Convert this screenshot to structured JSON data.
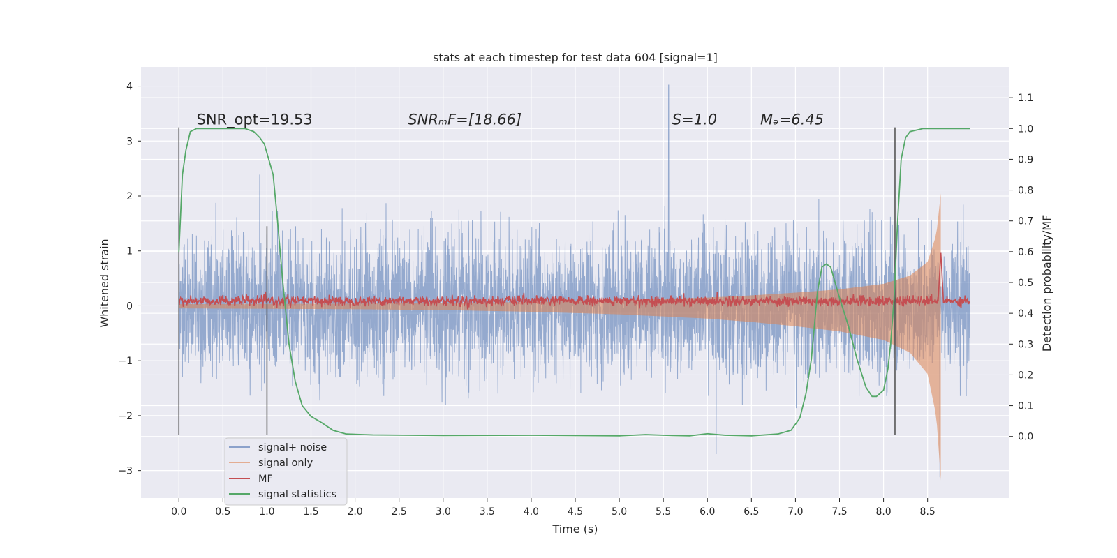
{
  "chart_data": {
    "type": "line",
    "title": "stats at each timestep for test data 604 [signal=1]",
    "xlabel": "Time (s)",
    "ylabel": "Whitened strain",
    "ylabel_right": "Detection probability/MF",
    "xlim": [
      -0.43,
      9.43
    ],
    "ylim": [
      -3.5,
      4.35
    ],
    "ylim_right": [
      -0.2,
      1.2
    ],
    "x_ticks": [
      0.0,
      0.5,
      1.0,
      1.5,
      2.0,
      2.5,
      3.0,
      3.5,
      4.0,
      4.5,
      5.0,
      5.5,
      6.0,
      6.5,
      7.0,
      7.5,
      8.0,
      8.5
    ],
    "x_tick_labels": [
      "0.0",
      "0.5",
      "1.0",
      "1.5",
      "2.0",
      "2.5",
      "3.0",
      "3.5",
      "4.0",
      "4.5",
      "5.0",
      "5.5",
      "6.0",
      "6.5",
      "7.0",
      "7.5",
      "8.0",
      "8.5"
    ],
    "y_ticks": [
      -3,
      -2,
      -1,
      0,
      1,
      2,
      3,
      4
    ],
    "y_tick_labels": [
      "−3",
      "−2",
      "−1",
      "0",
      "1",
      "2",
      "3",
      "4"
    ],
    "y2_ticks": [
      0.0,
      0.1,
      0.2,
      0.3,
      0.4,
      0.5,
      0.6,
      0.7,
      0.8,
      0.9,
      1.0,
      1.1
    ],
    "y2_tick_labels": [
      "0.0",
      "0.1",
      "0.2",
      "0.3",
      "0.4",
      "0.5",
      "0.6",
      "0.7",
      "0.8",
      "0.9",
      "1.0",
      "1.1"
    ],
    "grid": true,
    "legend_placement": "lower-left",
    "annotations": [
      {
        "text": "SNR_opt=19.53",
        "x": 0.2,
        "y": 3.3
      },
      {
        "text": "SNRₘF=[18.66]",
        "x": 2.6,
        "y": 3.3
      },
      {
        "text": "S=1.0",
        "x": 5.6,
        "y": 3.3
      },
      {
        "text": "Mₔ=6.45",
        "x": 6.6,
        "y": 3.3
      }
    ],
    "window_markers": [
      {
        "x": 0.0,
        "y_range": [
          -2.35,
          3.25
        ]
      },
      {
        "x": 1.0,
        "y_range": [
          -2.35,
          1.45
        ]
      },
      {
        "x": 8.13,
        "y_range": [
          -2.35,
          3.25
        ]
      }
    ],
    "noise_band": {
      "x_start": 0.0,
      "x_end": 8.98,
      "typical_abs_max": 1.3,
      "max": 4.02,
      "max_x": 5.56,
      "min": -3.12,
      "min_x": 8.64
    },
    "signal_envelope": {
      "x": [
        0.0,
        1.0,
        2.0,
        3.0,
        4.0,
        5.0,
        6.0,
        6.5,
        7.0,
        7.5,
        8.0,
        8.3,
        8.5,
        8.6,
        8.65
      ],
      "amplitude": [
        0.03,
        0.035,
        0.04,
        0.05,
        0.07,
        0.1,
        0.15,
        0.19,
        0.24,
        0.3,
        0.4,
        0.55,
        0.8,
        1.3,
        2.05
      ]
    },
    "series": [
      {
        "name": "signal+ noise",
        "color": "#4c72b0",
        "values_note": "dense noise sampled over [0, 8.98] s"
      },
      {
        "name": "signal only",
        "color": "#dd8452"
      },
      {
        "name": "MF",
        "color": "#c44e52",
        "baseline": 0.44,
        "noise_std": 0.008,
        "peak": {
          "x": 8.65,
          "y": 0.6
        }
      },
      {
        "name": "signal statistics",
        "color": "#55a868",
        "x": [
          0.0,
          0.04,
          0.08,
          0.13,
          0.2,
          0.3,
          0.45,
          0.6,
          0.75,
          0.85,
          0.92,
          0.97,
          1.02,
          1.07,
          1.12,
          1.18,
          1.25,
          1.32,
          1.4,
          1.5,
          1.62,
          1.75,
          1.9,
          2.2,
          3.0,
          4.0,
          5.0,
          5.3,
          5.6,
          5.8,
          6.0,
          6.2,
          6.5,
          6.8,
          6.95,
          7.05,
          7.12,
          7.18,
          7.25,
          7.3,
          7.35,
          7.4,
          7.5,
          7.6,
          7.7,
          7.8,
          7.87,
          7.92,
          8.0,
          8.05,
          8.08,
          8.12,
          8.16,
          8.2,
          8.25,
          8.3,
          8.45,
          8.6,
          8.75,
          8.98
        ],
        "values": [
          0.6,
          0.85,
          0.93,
          0.99,
          1.0,
          1.0,
          1.0,
          1.0,
          1.0,
          0.99,
          0.97,
          0.95,
          0.9,
          0.85,
          0.7,
          0.5,
          0.3,
          0.18,
          0.1,
          0.065,
          0.045,
          0.02,
          0.008,
          0.005,
          0.003,
          0.004,
          0.002,
          0.006,
          0.003,
          0.002,
          0.009,
          0.004,
          0.002,
          0.008,
          0.02,
          0.06,
          0.14,
          0.25,
          0.47,
          0.55,
          0.56,
          0.55,
          0.45,
          0.36,
          0.25,
          0.16,
          0.13,
          0.13,
          0.15,
          0.22,
          0.3,
          0.45,
          0.7,
          0.9,
          0.97,
          0.99,
          1.0,
          1.0,
          1.0,
          1.0
        ]
      }
    ]
  }
}
